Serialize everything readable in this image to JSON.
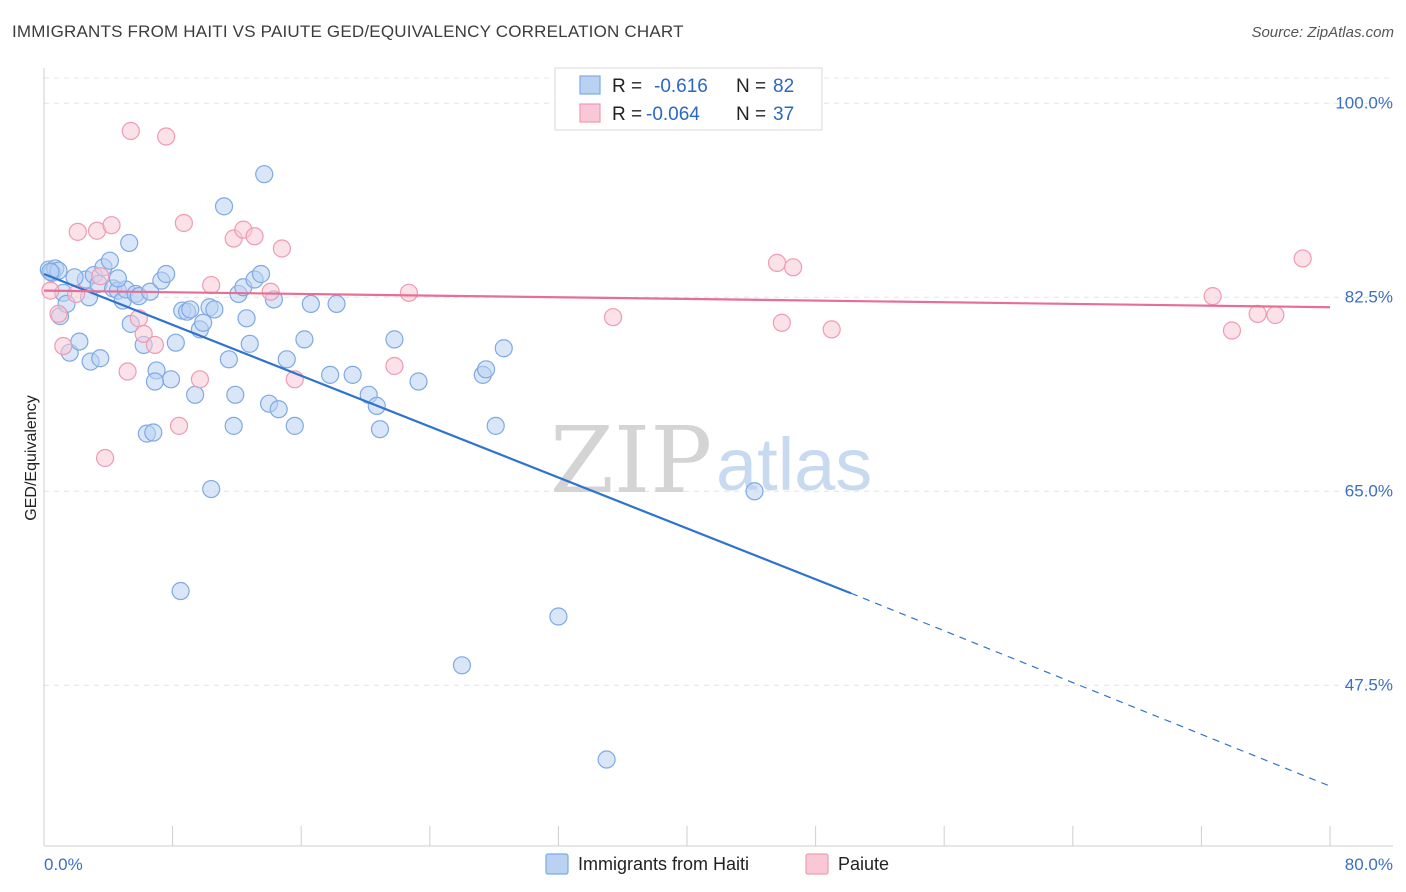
{
  "header": {
    "title": "IMMIGRANTS FROM HAITI VS PAIUTE GED/EQUIVALENCY CORRELATION CHART",
    "source": "Source: ZipAtlas.com"
  },
  "watermark": {
    "zip": "ZIP",
    "atlas": "atlas"
  },
  "legend": {
    "rows": [
      {
        "r_label": "R =",
        "r_value": "-0.616",
        "n_label": "N =",
        "n_value": "82",
        "color": "#a9c8ef"
      },
      {
        "r_label": "R =",
        "r_value": "-0.064",
        "n_label": "N =",
        "n_value": "37",
        "color": "#f5b9cb"
      }
    ]
  },
  "chart_data": {
    "type": "scatter",
    "ylabel": "GED/Equivalency",
    "xlim": [
      0,
      80
    ],
    "ylim": [
      33,
      103
    ],
    "x_tick_labels": [
      "0.0%",
      "80.0%"
    ],
    "y_ticks": [
      {
        "value": 100.0,
        "label": "100.0%"
      },
      {
        "value": 82.5,
        "label": "82.5%"
      },
      {
        "value": 65.0,
        "label": "65.0%"
      },
      {
        "value": 47.5,
        "label": "47.5%"
      }
    ],
    "grid": true,
    "legend_position": "top-center",
    "series": [
      {
        "name": "Immigrants from Haiti",
        "color": "#7fa9e3",
        "fill": "#b9d2f2",
        "trend_color": "#2f73d0",
        "trend": {
          "x0": 0,
          "y0": 84.6,
          "x1": 50.2,
          "y1": 55.8,
          "dash_to_x": 80,
          "dash_to_y": 38.4
        },
        "points": [
          [
            0.3,
            85.0
          ],
          [
            0.5,
            84.7
          ],
          [
            0.7,
            85.1
          ],
          [
            0.9,
            84.9
          ],
          [
            1.0,
            80.8
          ],
          [
            1.2,
            82.9
          ],
          [
            1.4,
            81.9
          ],
          [
            1.6,
            77.5
          ],
          [
            2.2,
            78.5
          ],
          [
            2.6,
            84.1
          ],
          [
            2.8,
            82.5
          ],
          [
            3.1,
            84.5
          ],
          [
            3.4,
            83.7
          ],
          [
            3.7,
            85.2
          ],
          [
            4.1,
            85.8
          ],
          [
            4.3,
            83.3
          ],
          [
            4.6,
            83.1
          ],
          [
            4.9,
            82.2
          ],
          [
            5.1,
            83.2
          ],
          [
            5.3,
            87.4
          ],
          [
            5.4,
            80.1
          ],
          [
            5.7,
            82.8
          ],
          [
            5.9,
            82.6
          ],
          [
            6.2,
            78.2
          ],
          [
            6.4,
            70.2
          ],
          [
            6.6,
            83.0
          ],
          [
            6.8,
            70.3
          ],
          [
            7.0,
            75.9
          ],
          [
            7.3,
            84.0
          ],
          [
            7.6,
            84.6
          ],
          [
            7.9,
            75.1
          ],
          [
            8.2,
            78.4
          ],
          [
            8.6,
            81.3
          ],
          [
            8.9,
            81.2
          ],
          [
            9.1,
            81.4
          ],
          [
            9.4,
            73.7
          ],
          [
            9.7,
            79.6
          ],
          [
            9.9,
            80.2
          ],
          [
            10.3,
            81.6
          ],
          [
            10.6,
            81.4
          ],
          [
            11.2,
            90.7
          ],
          [
            11.5,
            76.9
          ],
          [
            11.8,
            70.9
          ],
          [
            12.1,
            82.8
          ],
          [
            12.4,
            83.4
          ],
          [
            12.6,
            80.6
          ],
          [
            12.8,
            78.3
          ],
          [
            13.1,
            84.1
          ],
          [
            13.5,
            84.6
          ],
          [
            13.7,
            93.6
          ],
          [
            14.0,
            72.9
          ],
          [
            14.3,
            82.3
          ],
          [
            14.6,
            72.4
          ],
          [
            15.1,
            76.9
          ],
          [
            15.6,
            70.9
          ],
          [
            16.2,
            78.7
          ],
          [
            16.6,
            81.9
          ],
          [
            17.8,
            75.5
          ],
          [
            18.2,
            81.9
          ],
          [
            19.2,
            75.5
          ],
          [
            20.2,
            73.7
          ],
          [
            20.9,
            70.6
          ],
          [
            20.7,
            72.7
          ],
          [
            21.8,
            78.7
          ],
          [
            23.3,
            74.9
          ],
          [
            27.3,
            75.5
          ],
          [
            27.5,
            76.0
          ],
          [
            28.1,
            70.9
          ],
          [
            28.6,
            77.9
          ],
          [
            0.4,
            84.8
          ],
          [
            4.6,
            84.2
          ],
          [
            2.9,
            76.7
          ],
          [
            10.4,
            65.2
          ],
          [
            8.5,
            56.0
          ],
          [
            26.0,
            49.3
          ],
          [
            32.0,
            53.7
          ],
          [
            35.0,
            40.8
          ],
          [
            44.2,
            65.0
          ],
          [
            3.5,
            77.0
          ],
          [
            11.9,
            73.7
          ],
          [
            6.9,
            74.9
          ],
          [
            1.9,
            84.3
          ]
        ]
      },
      {
        "name": "Paiute",
        "color": "#f09ab4",
        "fill": "#f8c8d6",
        "trend_color": "#e66e97",
        "trend": {
          "x0": 0,
          "y0": 83.1,
          "x1": 80,
          "y1": 81.6
        },
        "points": [
          [
            0.4,
            83.1
          ],
          [
            0.9,
            81.0
          ],
          [
            1.2,
            78.1
          ],
          [
            2.1,
            88.4
          ],
          [
            3.3,
            88.5
          ],
          [
            3.5,
            84.4
          ],
          [
            4.2,
            89.0
          ],
          [
            5.2,
            75.8
          ],
          [
            5.4,
            97.5
          ],
          [
            5.9,
            80.6
          ],
          [
            6.2,
            79.2
          ],
          [
            6.9,
            78.2
          ],
          [
            7.6,
            97.0
          ],
          [
            8.4,
            70.9
          ],
          [
            8.7,
            89.2
          ],
          [
            9.7,
            75.1
          ],
          [
            10.4,
            83.6
          ],
          [
            11.8,
            87.8
          ],
          [
            12.4,
            88.6
          ],
          [
            13.1,
            88.0
          ],
          [
            14.1,
            83.0
          ],
          [
            14.8,
            86.9
          ],
          [
            15.6,
            75.1
          ],
          [
            21.8,
            76.3
          ],
          [
            22.7,
            82.9
          ],
          [
            35.4,
            80.7
          ],
          [
            45.6,
            85.6
          ],
          [
            46.6,
            85.2
          ],
          [
            45.9,
            80.2
          ],
          [
            49.0,
            79.6
          ],
          [
            72.7,
            82.6
          ],
          [
            73.9,
            79.5
          ],
          [
            75.5,
            81.0
          ],
          [
            76.6,
            80.9
          ],
          [
            78.3,
            86.0
          ],
          [
            3.8,
            68.0
          ],
          [
            2.0,
            82.8
          ]
        ]
      }
    ]
  },
  "bottom_legend": [
    {
      "label": "Immigrants from Haiti",
      "color": "#b9d2f2",
      "border": "#7fa9e3"
    },
    {
      "label": "Paiute",
      "color": "#f8c8d6",
      "border": "#f09ab4"
    }
  ]
}
